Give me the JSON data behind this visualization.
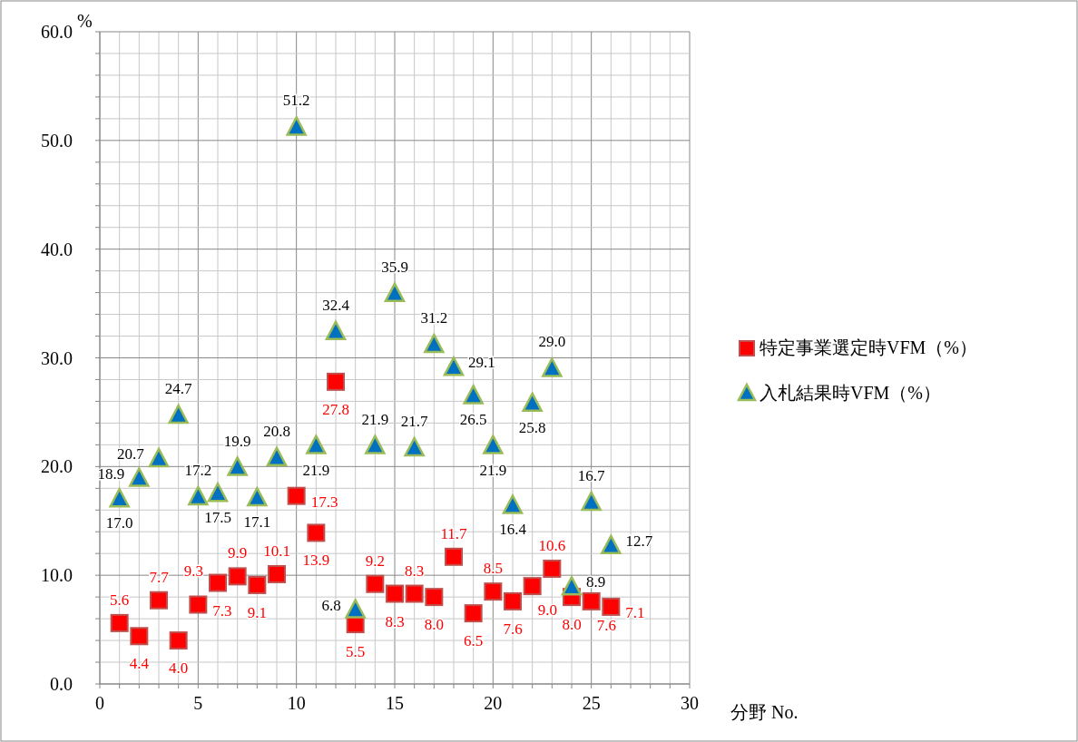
{
  "chart_data": {
    "type": "scatter",
    "xlabel": "分野 No.",
    "ylabel": "%",
    "x": [
      1,
      2,
      3,
      4,
      5,
      6,
      7,
      8,
      9,
      10,
      11,
      12,
      13,
      14,
      15,
      16,
      17,
      18,
      19,
      20,
      21,
      22,
      23,
      24,
      25,
      26
    ],
    "series": [
      {
        "name": "特定事業選定時VFM（%）",
        "color": "#ff0000",
        "marker": "square",
        "values": [
          5.6,
          4.4,
          7.7,
          4.0,
          7.3,
          9.3,
          9.9,
          9.1,
          10.1,
          17.3,
          13.9,
          27.8,
          5.5,
          9.2,
          8.3,
          8.3,
          8.0,
          11.7,
          6.5,
          8.5,
          7.6,
          9.0,
          10.6,
          8.0,
          7.6,
          7.1
        ],
        "value_labels": [
          "5.6",
          "4.4",
          "7.7",
          "4.0",
          "7.3",
          "9.3",
          "9.9",
          "9.1",
          "10.1",
          "17.3",
          "13.9",
          "27.8",
          "5.5",
          "9.2",
          "8.3",
          "8.3",
          "8.0",
          "11.7",
          "6.5",
          "8.5",
          "7.6",
          "9.0",
          "10.6",
          "8.0",
          "7.6",
          "7.1"
        ]
      },
      {
        "name": "入札結果時VFM（%）",
        "color": "#0070c0",
        "marker": "triangle",
        "values": [
          17.0,
          18.9,
          20.7,
          24.7,
          17.2,
          17.5,
          19.9,
          17.1,
          20.8,
          51.2,
          21.9,
          32.4,
          6.8,
          21.9,
          35.9,
          21.7,
          31.2,
          29.1,
          26.5,
          21.9,
          16.4,
          25.8,
          29.0,
          8.9,
          16.7,
          12.7
        ],
        "value_labels": [
          "17.0",
          "18.9",
          "20.7",
          "24.7",
          "17.2",
          "17.5",
          "19.9",
          "17.1",
          "20.8",
          "51.2",
          "21.9",
          "32.4",
          "6.8",
          "21.9",
          "35.9",
          "21.7",
          "31.2",
          "29.1",
          "26.5",
          "21.9",
          "16.4",
          "25.8",
          "29.0",
          "8.9",
          "16.7",
          "12.7"
        ]
      }
    ],
    "xlim": [
      0,
      30
    ],
    "xticks": [
      0,
      {
        "value": 1,
        "label": null
      },
      {
        "value": 2,
        "label": null
      },
      {
        "value": 3,
        "label": null
      },
      {
        "value": 4,
        "label": null
      },
      5,
      {
        "value": 6,
        "label": null
      },
      {
        "value": 7,
        "label": null
      },
      {
        "value": 8,
        "label": null
      },
      {
        "value": 9,
        "label": null
      },
      10,
      {
        "value": 11,
        "label": null
      },
      {
        "value": 12,
        "label": null
      },
      {
        "value": 13,
        "label": null
      },
      {
        "value": 14,
        "label": null
      },
      15,
      {
        "value": 16,
        "label": null
      },
      {
        "value": 17,
        "label": null
      },
      {
        "value": 18,
        "label": null
      },
      {
        "value": 19,
        "label": null
      },
      20,
      {
        "value": 21,
        "label": null
      },
      {
        "value": 22,
        "label": null
      },
      {
        "value": 23,
        "label": null
      },
      {
        "value": 24,
        "label": null
      },
      25,
      {
        "value": 26,
        "label": null
      },
      {
        "value": 27,
        "label": null
      },
      {
        "value": 28,
        "label": null
      },
      {
        "value": 29,
        "label": null
      },
      30
    ],
    "ylim": [
      0,
      60
    ],
    "yticks": [
      {
        "value": 0,
        "label": "0.0"
      },
      {
        "value": 2,
        "label": null
      },
      {
        "value": 4,
        "label": null
      },
      {
        "value": 6,
        "label": null
      },
      {
        "value": 8,
        "label": null
      },
      {
        "value": 10,
        "label": "10.0"
      },
      {
        "value": 12,
        "label": null
      },
      {
        "value": 14,
        "label": null
      },
      {
        "value": 16,
        "label": null
      },
      {
        "value": 18,
        "label": null
      },
      {
        "value": 20,
        "label": "20.0"
      },
      {
        "value": 22,
        "label": null
      },
      {
        "value": 24,
        "label": null
      },
      {
        "value": 26,
        "label": null
      },
      {
        "value": 28,
        "label": null
      },
      {
        "value": 30,
        "label": "30.0"
      },
      {
        "value": 32,
        "label": null
      },
      {
        "value": 34,
        "label": null
      },
      {
        "value": 36,
        "label": null
      },
      {
        "value": 38,
        "label": null
      },
      {
        "value": 40,
        "label": "40.0"
      },
      {
        "value": 42,
        "label": null
      },
      {
        "value": 44,
        "label": null
      },
      {
        "value": 46,
        "label": null
      },
      {
        "value": 48,
        "label": null
      },
      {
        "value": 50,
        "label": "50.0"
      },
      {
        "value": 52,
        "label": null
      },
      {
        "value": 54,
        "label": null
      },
      {
        "value": 56,
        "label": null
      },
      {
        "value": 58,
        "label": null
      },
      {
        "value": 60,
        "label": "60.0"
      }
    ],
    "grid": true,
    "legend": "right"
  }
}
